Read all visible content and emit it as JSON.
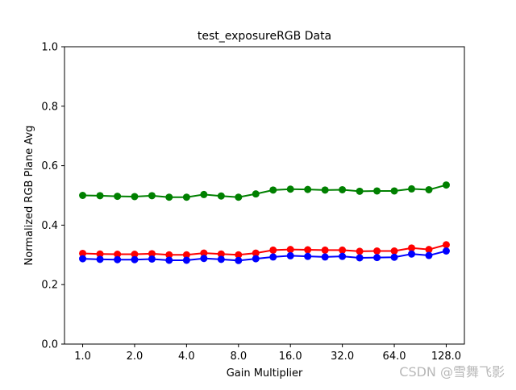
{
  "watermark": "CSDN @雪舞飞影",
  "chart_data": {
    "type": "line",
    "title": "test_exposureRGB Data",
    "xlabel": "Gain Multiplier",
    "ylabel": "Normalized RGB Plane Avg",
    "x_scale": "log2",
    "x_ticks": [
      1.0,
      2.0,
      4.0,
      8.0,
      16.0,
      32.0,
      64.0,
      128.0
    ],
    "x_tick_labels": [
      "1.0",
      "2.0",
      "4.0",
      "8.0",
      "16.0",
      "32.0",
      "64.0",
      "128.0"
    ],
    "ylim": [
      0.0,
      1.0
    ],
    "y_ticks": [
      0.0,
      0.2,
      0.4,
      0.6,
      0.8,
      1.0
    ],
    "y_tick_labels": [
      "0.0",
      "0.2",
      "0.4",
      "0.6",
      "0.8",
      "1.0"
    ],
    "grid": false,
    "legend": "none",
    "x": [
      1.0,
      1.26,
      1.59,
      2.0,
      2.52,
      3.17,
      4.0,
      5.04,
      6.35,
      8.0,
      10.08,
      12.7,
      16.0,
      20.16,
      25.4,
      32.0,
      40.32,
      50.8,
      64.0,
      80.63,
      101.59,
      128.0
    ],
    "series": [
      {
        "color": "#008000",
        "values": [
          0.5,
          0.499,
          0.497,
          0.496,
          0.499,
          0.494,
          0.494,
          0.503,
          0.498,
          0.494,
          0.505,
          0.518,
          0.521,
          0.52,
          0.518,
          0.519,
          0.514,
          0.515,
          0.515,
          0.522,
          0.519,
          0.535
        ]
      },
      {
        "color": "#ff0000",
        "values": [
          0.305,
          0.303,
          0.302,
          0.302,
          0.304,
          0.3,
          0.3,
          0.306,
          0.303,
          0.3,
          0.306,
          0.316,
          0.318,
          0.317,
          0.316,
          0.316,
          0.312,
          0.313,
          0.313,
          0.323,
          0.318,
          0.334
        ]
      },
      {
        "color": "#0000ff",
        "values": [
          0.287,
          0.285,
          0.284,
          0.284,
          0.286,
          0.282,
          0.282,
          0.288,
          0.285,
          0.281,
          0.287,
          0.293,
          0.297,
          0.295,
          0.293,
          0.295,
          0.29,
          0.291,
          0.292,
          0.303,
          0.298,
          0.313
        ]
      }
    ]
  }
}
